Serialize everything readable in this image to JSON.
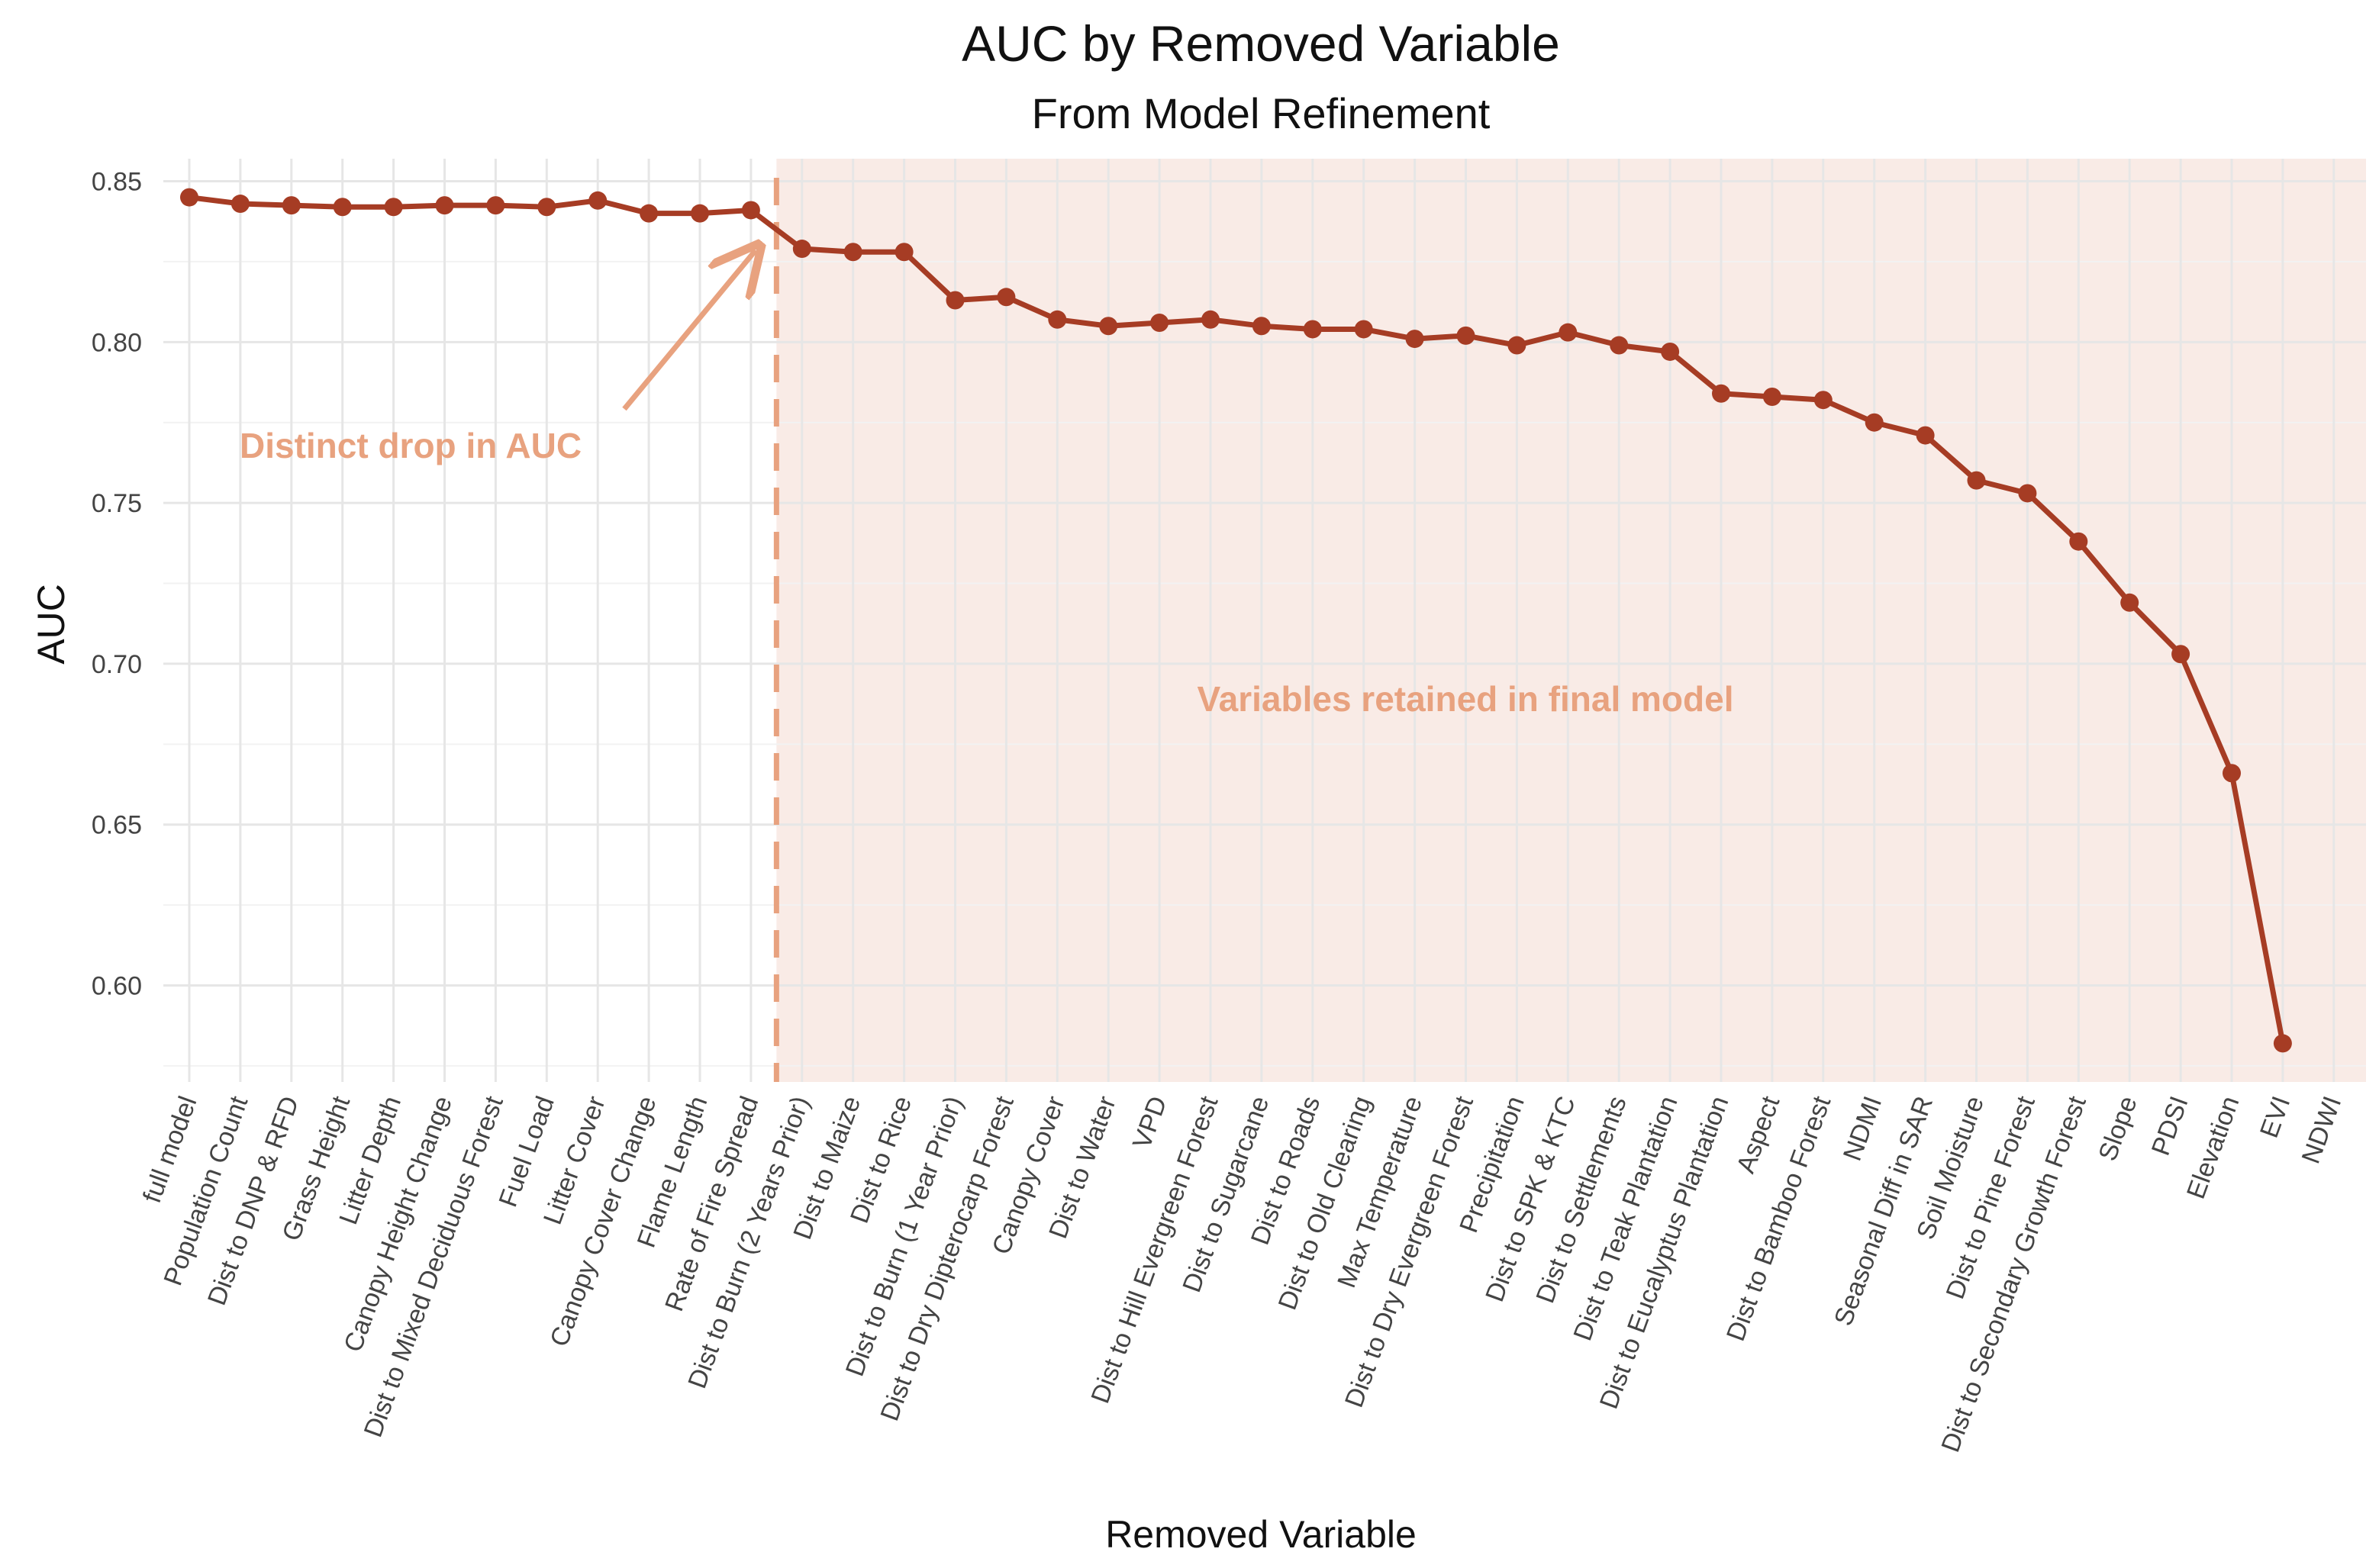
{
  "colors": {
    "line": "#a63c24",
    "point": "#a63c24",
    "annotation": "#e8a27f",
    "shade": "#f9ebe6",
    "grid_major": "#e6e6e6",
    "grid_minor": "#f2f2f2"
  },
  "chart_data": {
    "type": "line",
    "title": "AUC by Removed Variable",
    "subtitle": "From Model Refinement",
    "xlabel": "Removed Variable",
    "ylabel": "AUC",
    "ylim": [
      0.57,
      0.857
    ],
    "yticks": [
      0.6,
      0.65,
      0.7,
      0.75,
      0.8,
      0.85
    ],
    "ytick_labels": [
      "0.60",
      "0.65",
      "0.70",
      "0.75",
      "0.80",
      "0.85"
    ],
    "grid": true,
    "categories": [
      "full model",
      "Population Count",
      "Dist to DNP & RFD",
      "Grass Height",
      "Litter Depth",
      "Canopy Height Change",
      "Dist to Mixed Deciduous Forest",
      "Fuel Load",
      "Litter Cover",
      "Canopy Cover Change",
      "Flame Length",
      "Rate of Fire Spread",
      "Dist to Burn (2 Years Prior)",
      "Dist to Maize",
      "Dist to Rice",
      "Dist to Burn (1 Year Prior)",
      "Dist to Dry Dipterocarp Forest",
      "Canopy Cover",
      "Dist to Water",
      "VPD",
      "Dist to Hill Evergreen Forest",
      "Dist to Sugarcane",
      "Dist to Roads",
      "Dist to Old Clearing",
      "Max Temperature",
      "Dist to Dry Evergreen Forest",
      "Precipitation",
      "Dist to SPK & KTC",
      "Dist to Settlements",
      "Dist to Teak Plantation",
      "Dist to Eucalyptus Plantation",
      "Aspect",
      "Dist to Bamboo Forest",
      "NDMI",
      "Seasonal Diff in SAR",
      "Soil Moisture",
      "Dist to Pine Forest",
      "Dist to Secondary Growth Forest",
      "Slope",
      "PDSI",
      "Elevation",
      "EVI",
      "NDWI"
    ],
    "values": [
      0.845,
      0.843,
      0.8425,
      0.842,
      0.842,
      0.8425,
      0.8425,
      0.842,
      0.844,
      0.84,
      0.84,
      0.841,
      0.829,
      0.828,
      0.828,
      0.813,
      0.814,
      0.807,
      0.805,
      0.806,
      0.807,
      0.805,
      0.804,
      0.804,
      0.801,
      0.802,
      0.799,
      0.803,
      0.799,
      0.797,
      0.784,
      0.783,
      0.782,
      0.775,
      0.771,
      0.757,
      0.753,
      0.738,
      0.719,
      0.703,
      0.666,
      0.582,
      null
    ],
    "cutoff_after_index": 11,
    "annotations": [
      {
        "text": "Distinct drop in AUC"
      },
      {
        "text": "Variables retained in final model"
      }
    ]
  }
}
